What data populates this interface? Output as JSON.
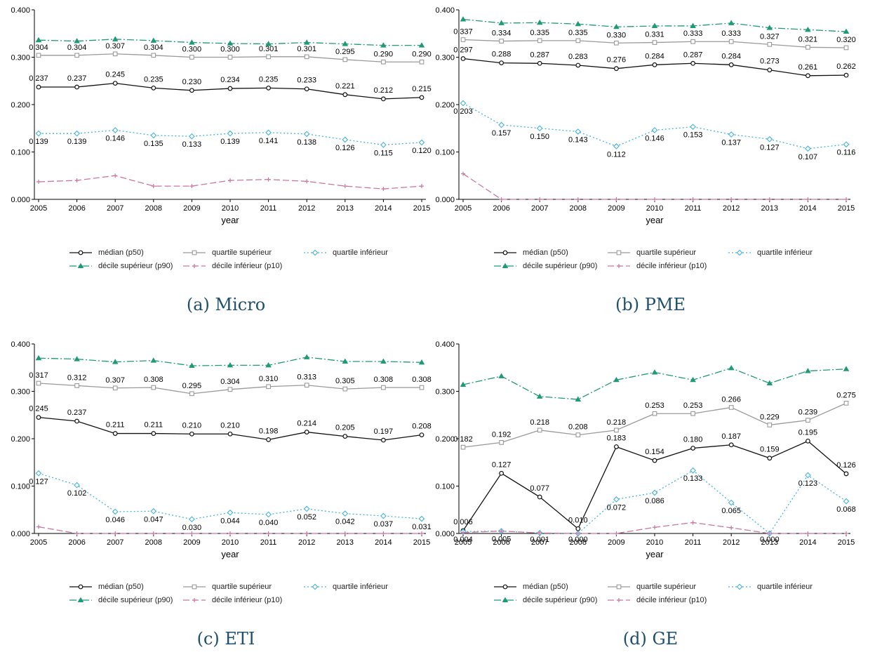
{
  "legend_labels": {
    "p50": "médian (p50)",
    "q3": "quartile supérieur",
    "q1": "quartile inférieur",
    "p90": "décile supérieur (p90)",
    "p10": "décile inférieur (p10)"
  },
  "colors": {
    "p50": "#111111",
    "q3": "#9a9a9a",
    "q1": "#46b3e0",
    "p90": "#1f9a76",
    "p10": "#c9779f"
  },
  "chart_data": [
    {
      "type": "line",
      "caption": "(a) Micro",
      "xlabel": "year",
      "ylabel": "",
      "ylim": [
        0,
        0.4
      ],
      "yticks": [
        "0.000",
        "0.100",
        "0.200",
        "0.300",
        "0.400"
      ],
      "x": [
        2005,
        2006,
        2007,
        2008,
        2009,
        2010,
        2011,
        2012,
        2013,
        2014,
        2015
      ],
      "series": [
        {
          "key": "p90",
          "values": [
            0.336,
            0.334,
            0.338,
            0.335,
            0.331,
            0.329,
            0.328,
            0.331,
            0.328,
            0.325,
            0.325
          ],
          "labels": null
        },
        {
          "key": "q3",
          "values": [
            0.304,
            0.304,
            0.307,
            0.304,
            0.3,
            0.3,
            0.301,
            0.301,
            0.295,
            0.29,
            0.29
          ],
          "labels": [
            "0.304",
            "0.304",
            "0.307",
            "0.304",
            "0.300",
            "0.300",
            "0.301",
            "0.301",
            "0.295",
            "0.290",
            "0.290"
          ]
        },
        {
          "key": "p50",
          "values": [
            0.237,
            0.237,
            0.245,
            0.235,
            0.23,
            0.234,
            0.235,
            0.233,
            0.221,
            0.212,
            0.215
          ],
          "labels": [
            "0.237",
            "0.237",
            "0.245",
            "0.235",
            "0.230",
            "0.234",
            "0.235",
            "0.233",
            "0.221",
            "0.212",
            "0.215"
          ]
        },
        {
          "key": "q1",
          "values": [
            0.139,
            0.139,
            0.146,
            0.135,
            0.133,
            0.139,
            0.141,
            0.138,
            0.126,
            0.115,
            0.12
          ],
          "labels": [
            "0.139",
            "0.139",
            "0.146",
            "0.135",
            "0.133",
            "0.139",
            "0.141",
            "0.138",
            "0.126",
            "0.115",
            "0.120"
          ]
        },
        {
          "key": "p10",
          "values": [
            0.037,
            0.04,
            0.05,
            0.028,
            0.028,
            0.04,
            0.042,
            0.038,
            0.028,
            0.022,
            0.028
          ],
          "labels": null
        }
      ]
    },
    {
      "type": "line",
      "caption": "(b) PME",
      "xlabel": "year",
      "ylabel": "",
      "ylim": [
        0,
        0.4
      ],
      "yticks": [
        "0.000",
        "0.100",
        "0.200",
        "0.300",
        "0.400"
      ],
      "x": [
        2005,
        2006,
        2007,
        2008,
        2009,
        2010,
        2011,
        2012,
        2013,
        2014,
        2015
      ],
      "series": [
        {
          "key": "p90",
          "values": [
            0.38,
            0.372,
            0.373,
            0.37,
            0.364,
            0.366,
            0.366,
            0.372,
            0.362,
            0.358,
            0.354
          ],
          "labels": null
        },
        {
          "key": "q3",
          "values": [
            0.337,
            0.334,
            0.335,
            0.335,
            0.33,
            0.331,
            0.333,
            0.333,
            0.327,
            0.321,
            0.32
          ],
          "labels": [
            "0.337",
            "0.334",
            "0.335",
            "0.335",
            "0.330",
            "0.331",
            "0.333",
            "0.333",
            "0.327",
            "0.321",
            "0.320"
          ]
        },
        {
          "key": "p50",
          "values": [
            0.297,
            0.288,
            0.287,
            0.283,
            0.276,
            0.284,
            0.287,
            0.284,
            0.273,
            0.261,
            0.262
          ],
          "labels": [
            "0.297",
            "0.288",
            "0.287",
            "0.283",
            "0.276",
            "0.284",
            "0.287",
            "0.284",
            "0.273",
            "0.261",
            "0.262"
          ]
        },
        {
          "key": "q1",
          "values": [
            0.203,
            0.157,
            0.15,
            0.143,
            0.112,
            0.146,
            0.153,
            0.137,
            0.127,
            0.107,
            0.116
          ],
          "labels": [
            "0.203",
            "0.157",
            "0.150",
            "0.143",
            "0.112",
            "0.146",
            "0.153",
            "0.137",
            "0.127",
            "0.107",
            "0.116"
          ]
        },
        {
          "key": "p10",
          "values": [
            0.054,
            0.0,
            0.0,
            0.0,
            0.0,
            0.0,
            0.0,
            0.0,
            0.0,
            0.0,
            0.0
          ],
          "labels": null
        }
      ]
    },
    {
      "type": "line",
      "caption": "(c) ETI",
      "xlabel": "year",
      "ylabel": "",
      "ylim": [
        0,
        0.4
      ],
      "yticks": [
        "0.000",
        "0.100",
        "0.200",
        "0.300",
        "0.400"
      ],
      "x": [
        2005,
        2006,
        2007,
        2008,
        2009,
        2010,
        2011,
        2012,
        2013,
        2014,
        2015
      ],
      "series": [
        {
          "key": "p90",
          "values": [
            0.37,
            0.368,
            0.362,
            0.365,
            0.354,
            0.355,
            0.355,
            0.372,
            0.363,
            0.363,
            0.361
          ],
          "labels": null
        },
        {
          "key": "q3",
          "values": [
            0.317,
            0.312,
            0.307,
            0.308,
            0.295,
            0.304,
            0.31,
            0.313,
            0.305,
            0.308,
            0.308
          ],
          "labels": [
            "0.317",
            "0.312",
            "0.307",
            "0.308",
            "0.295",
            "0.304",
            "0.310",
            "0.313",
            "0.305",
            "0.308",
            "0.308"
          ]
        },
        {
          "key": "p50",
          "values": [
            0.245,
            0.237,
            0.211,
            0.211,
            0.21,
            0.21,
            0.198,
            0.214,
            0.205,
            0.197,
            0.208
          ],
          "labels": [
            "0.245",
            "0.237",
            "0.211",
            "0.211",
            "0.210",
            "0.210",
            "0.198",
            "0.214",
            "0.205",
            "0.197",
            "0.208"
          ]
        },
        {
          "key": "q1",
          "values": [
            0.127,
            0.102,
            0.046,
            0.047,
            0.03,
            0.044,
            0.04,
            0.052,
            0.042,
            0.037,
            0.031
          ],
          "labels": [
            "0.127",
            "0.102",
            "0.046",
            "0.047",
            "0.030",
            "0.044",
            "0.040",
            "0.052",
            "0.042",
            "0.037",
            "0.031"
          ]
        },
        {
          "key": "p10",
          "values": [
            0.014,
            0.0,
            0.0,
            0.0,
            0.0,
            0.0,
            0.0,
            0.0,
            0.0,
            0.0,
            0.0
          ],
          "labels": null
        }
      ]
    },
    {
      "type": "line",
      "caption": "(d) GE",
      "xlabel": "year",
      "ylabel": "",
      "ylim": [
        0,
        0.4
      ],
      "yticks": [
        "0.000",
        "0.100",
        "0.200",
        "0.300",
        "0.400"
      ],
      "x": [
        2005,
        2006,
        2007,
        2008,
        2009,
        2010,
        2011,
        2012,
        2013,
        2014,
        2015
      ],
      "series": [
        {
          "key": "p90",
          "values": [
            0.314,
            0.332,
            0.289,
            0.283,
            0.324,
            0.34,
            0.324,
            0.349,
            0.317,
            0.343,
            0.347
          ],
          "labels": null
        },
        {
          "key": "q3",
          "values": [
            0.182,
            0.192,
            0.218,
            0.208,
            0.218,
            0.253,
            0.253,
            0.266,
            0.229,
            0.239,
            0.275
          ],
          "labels": [
            "0.182",
            "0.192",
            "0.218",
            "0.208",
            "0.218",
            "0.253",
            "0.253",
            "0.266",
            "0.229",
            "0.239",
            "0.275"
          ]
        },
        {
          "key": "p50",
          "values": [
            0.006,
            0.127,
            0.077,
            0.01,
            0.183,
            0.154,
            0.18,
            0.187,
            0.159,
            0.195,
            0.126
          ],
          "labels": [
            "0.006",
            "0.127",
            "0.077",
            "0.010",
            "0.183",
            "0.154",
            "0.180",
            "0.187",
            "0.159",
            "0.195",
            "0.126"
          ]
        },
        {
          "key": "q1",
          "values": [
            0.004,
            0.005,
            0.001,
            0.0,
            0.072,
            0.086,
            0.133,
            0.065,
            0.0,
            0.123,
            0.068
          ],
          "labels": [
            "0.004",
            "0.005",
            "0.001",
            "0.000",
            "0.072",
            "0.086",
            "0.133",
            "0.065",
            "0.000",
            "0.123",
            "0.068"
          ]
        },
        {
          "key": "p10",
          "values": [
            0.002,
            0.005,
            0.001,
            0.0,
            0.0,
            0.013,
            0.023,
            0.012,
            0.0,
            0.0,
            0.0
          ],
          "labels": null
        }
      ]
    }
  ]
}
